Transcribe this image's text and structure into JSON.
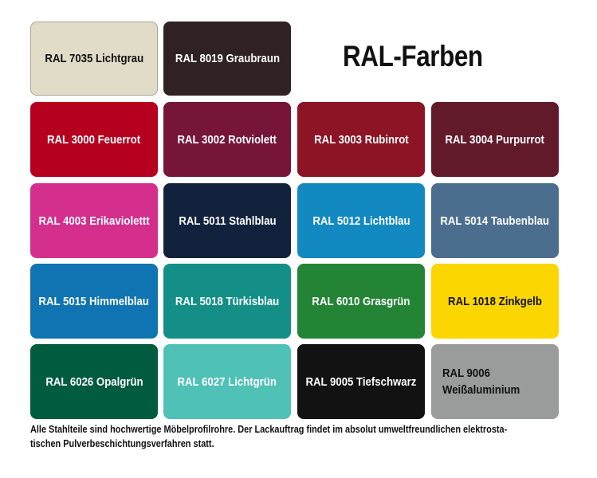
{
  "title": "RAL-Farben",
  "swatches": [
    {
      "label": "RAL 7035 Lichtgrau",
      "color": "#e0dcc7"
    },
    {
      "label": "RAL 8019 Graubraun",
      "color": "#302224"
    },
    {
      "label": "RAL 3000 Feuerrot",
      "color": "#b6001f"
    },
    {
      "label": "RAL 3002 Rotviolett",
      "color": "#761538"
    },
    {
      "label": "RAL 3003 Rubinrot",
      "color": "#8c1425"
    },
    {
      "label": "RAL 3004 Purpurrot",
      "color": "#621a2b"
    },
    {
      "label": "RAL 4003 Erikaviolettt",
      "color": "#d42f8d"
    },
    {
      "label": "RAL 5011 Stahlblau",
      "color": "#13223c"
    },
    {
      "label": "RAL 5012 Lichtblau",
      "color": "#1389c2"
    },
    {
      "label": "RAL 5014 Taubenblau",
      "color": "#4b6e8f"
    },
    {
      "label": "RAL 5015 Himmelblau",
      "color": "#0f74b1"
    },
    {
      "label": "RAL 5018 Türkisblau",
      "color": "#138f88"
    },
    {
      "label": "RAL 6010 Grasgrün",
      "color": "#238436"
    },
    {
      "label": "RAL 1018 Zinkgelb",
      "color": "#fbd600"
    },
    {
      "label": "RAL 6026 Opalgrün",
      "color": "#005b3f"
    },
    {
      "label": "RAL 6027 Lichtgrün",
      "color": "#4fc1b7"
    },
    {
      "label": "RAL 9005 Tiefschwarz",
      "color": "#121212"
    },
    {
      "label": "RAL 9006 Weißaluminium",
      "color": "#9a9c9c"
    }
  ],
  "note": "Alle Stahlteile sind hochwertige Möbelprofilrohre. Der Lackauftrag findet im absolut umweltfreundlichen elektrosta-tischen Pulverbeschichtungsverfahren statt."
}
